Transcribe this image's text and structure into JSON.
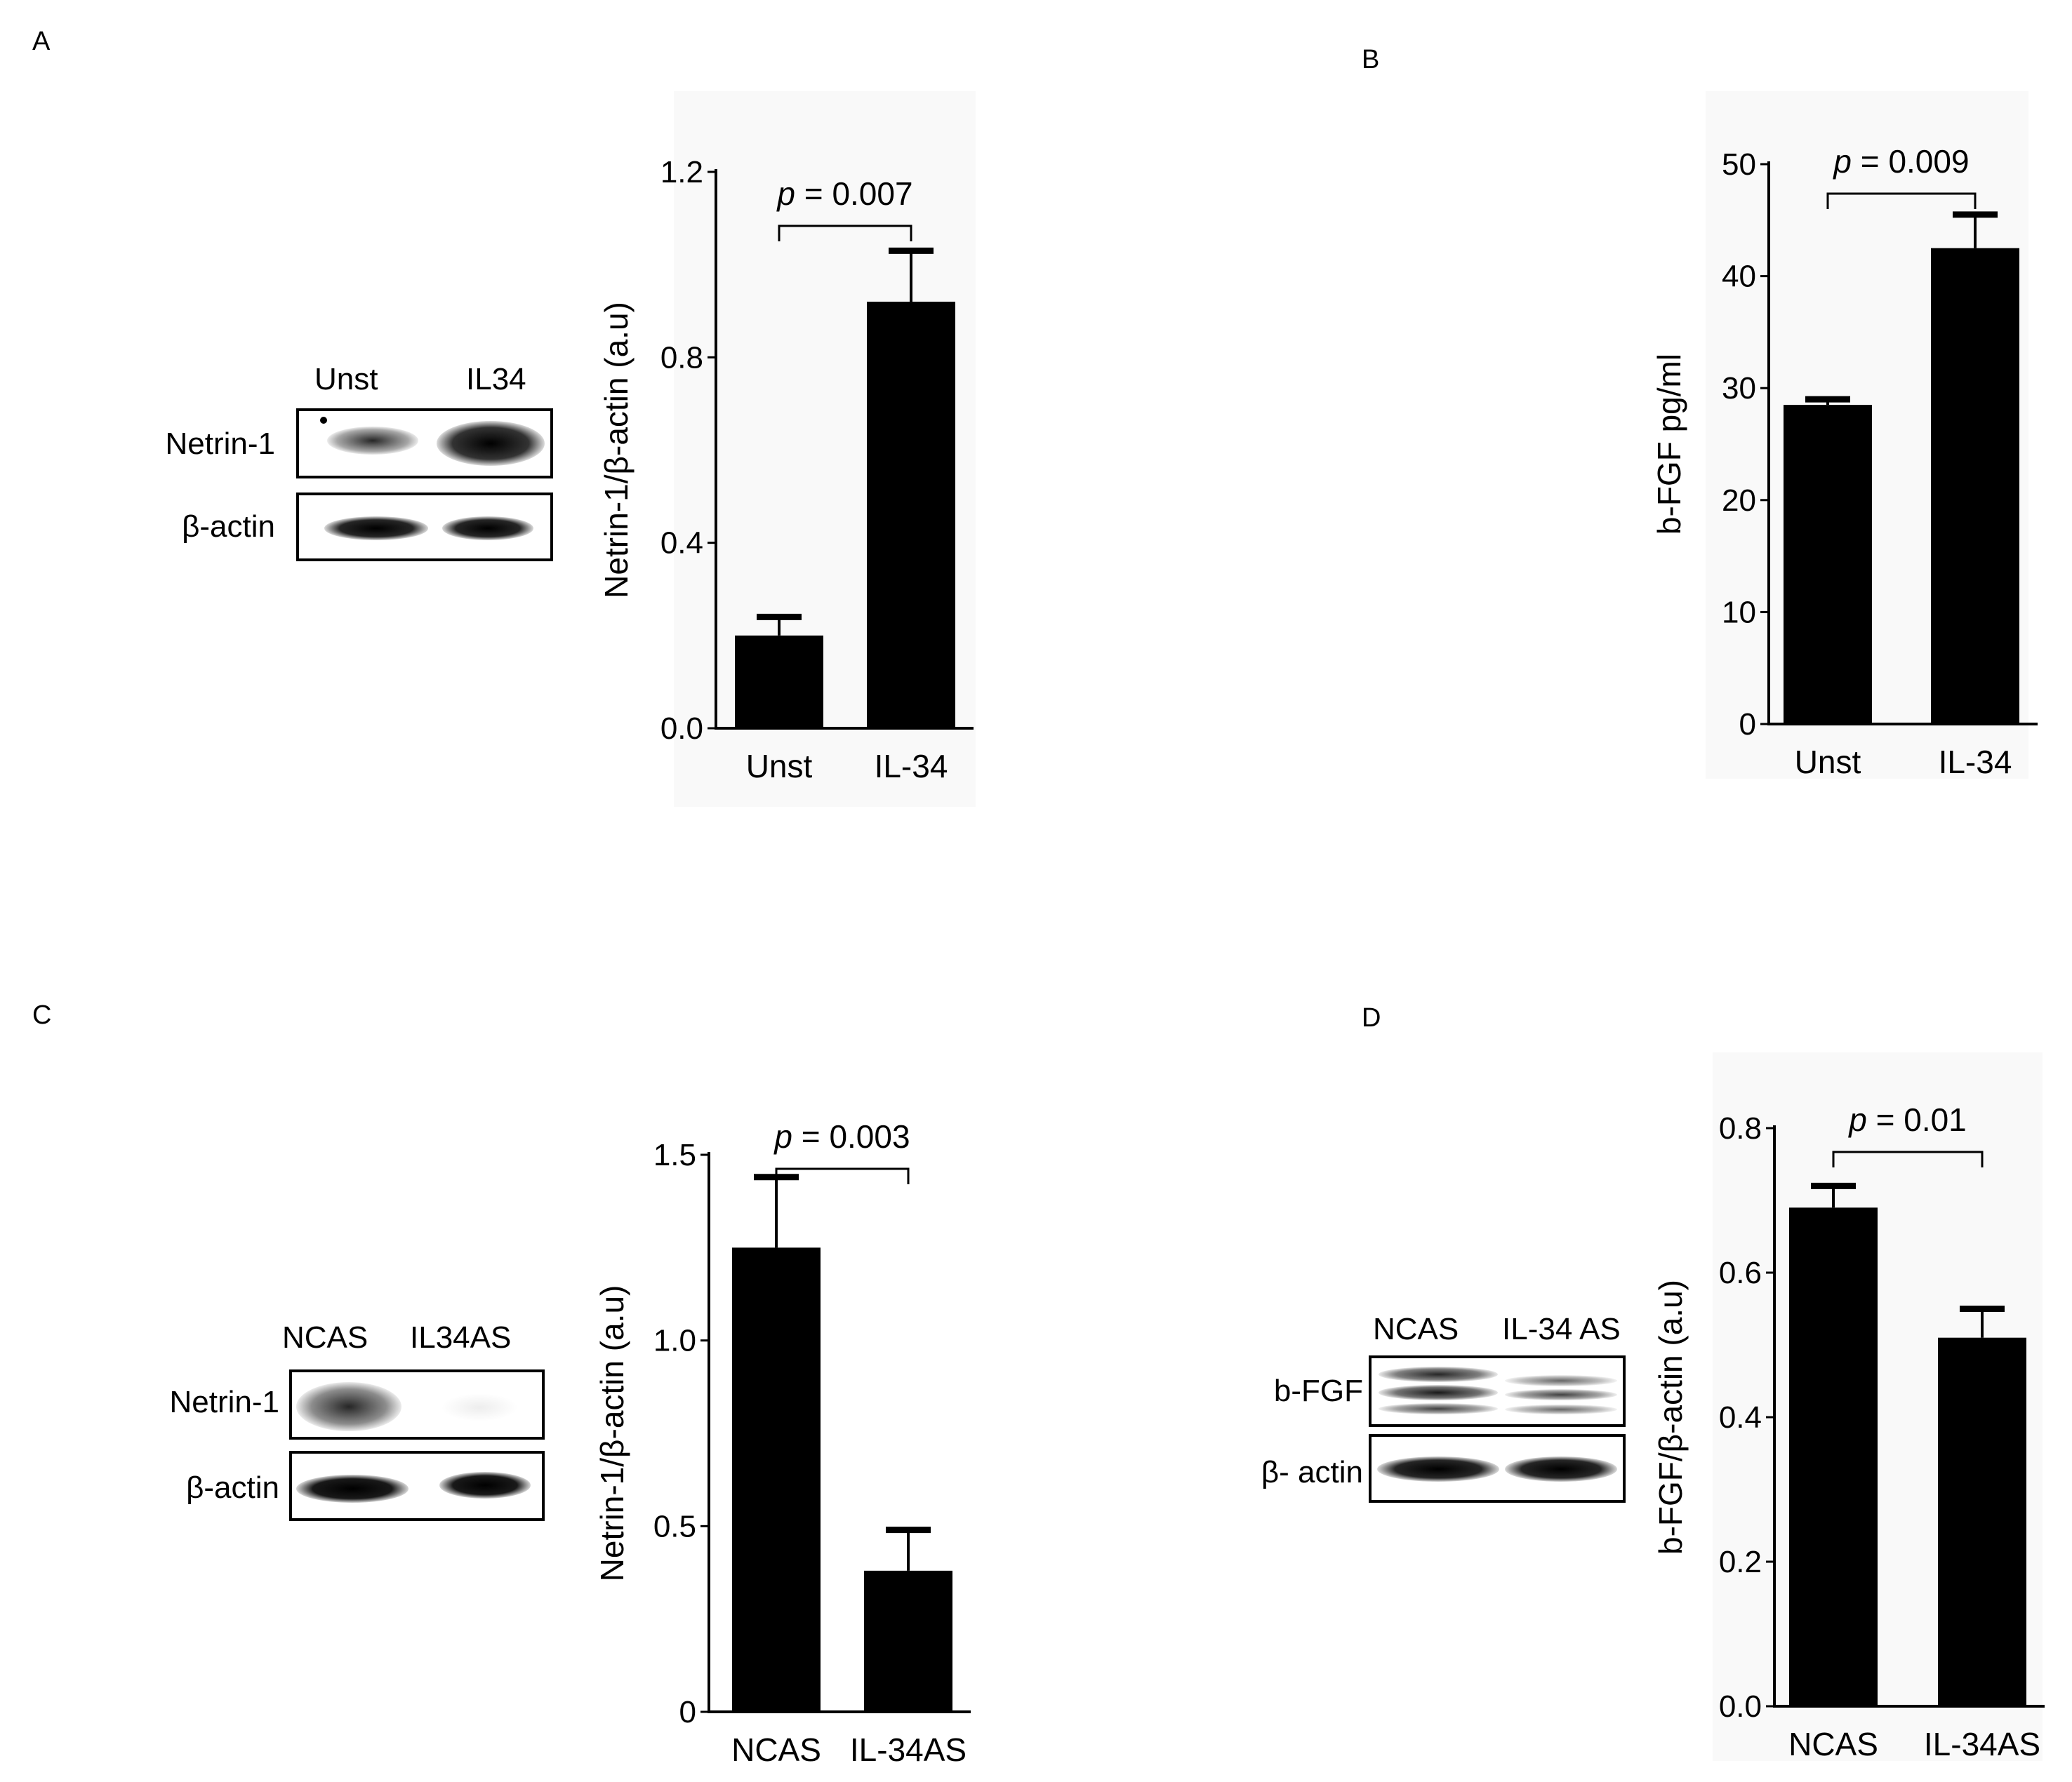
{
  "panel_letters": {
    "a": "A",
    "b": "B",
    "c": "C",
    "d": "D"
  },
  "blots": {
    "a": {
      "lanes": [
        "Unst",
        "IL34"
      ],
      "rows": [
        "Netrin-1",
        "β-actin"
      ]
    },
    "c": {
      "lanes": [
        "NCAS",
        "IL34AS"
      ],
      "rows": [
        "Netrin-1",
        "β-actin"
      ]
    },
    "d": {
      "lanes": [
        "NCAS",
        "IL-34 AS"
      ],
      "rows": [
        "b-FGF",
        "β- actin"
      ]
    }
  },
  "chart_data": [
    {
      "id": "a",
      "type": "bar",
      "categories": [
        "Unst",
        "IL-34"
      ],
      "values": [
        0.2,
        0.92
      ],
      "errors": [
        0.04,
        0.11
      ],
      "ylabel": "Netrin-1/β-actin (a.u)",
      "ylim": [
        0,
        1.2
      ],
      "yticks": [
        "0.0",
        "0.4",
        "0.8",
        "1.2"
      ],
      "ytick_values": [
        0,
        0.4,
        0.8,
        1.2
      ],
      "annotation": {
        "p_symbol": "p",
        "text": " = 0.007"
      },
      "bar_color": "#000000",
      "background": "#f9f9f9"
    },
    {
      "id": "b",
      "type": "bar",
      "categories": [
        "Unst",
        "IL-34"
      ],
      "values": [
        28.5,
        42.5
      ],
      "errors": [
        0.5,
        3.0
      ],
      "ylabel": "b-FGF  pg/ml",
      "ylim": [
        0,
        50
      ],
      "yticks": [
        "0",
        "10",
        "20",
        "30",
        "40",
        "50"
      ],
      "ytick_values": [
        0,
        10,
        20,
        30,
        40,
        50
      ],
      "annotation": {
        "p_symbol": "p",
        "text": " = 0.009"
      },
      "bar_color": "#000000",
      "background": "#f9f9f9"
    },
    {
      "id": "c",
      "type": "bar",
      "categories": [
        "NCAS",
        "IL-34AS"
      ],
      "values": [
        1.25,
        0.38
      ],
      "errors": [
        0.19,
        0.11
      ],
      "ylabel": "Netrin-1/β-actin (a.u)",
      "ylim": [
        0,
        1.5
      ],
      "yticks": [
        "0",
        "0.5",
        "1.0",
        "1.5"
      ],
      "ytick_values": [
        0,
        0.5,
        1.0,
        1.5
      ],
      "annotation": {
        "p_symbol": "p",
        "text": " = 0.003"
      },
      "bar_color": "#000000",
      "background": "#ffffff"
    },
    {
      "id": "d",
      "type": "bar",
      "categories": [
        "NCAS",
        "IL-34AS"
      ],
      "values": [
        0.69,
        0.51
      ],
      "errors": [
        0.03,
        0.04
      ],
      "ylabel": "b-FGF/β-actin (a.u)",
      "ylim": [
        0,
        0.8
      ],
      "yticks": [
        "0.0",
        "0.2",
        "0.4",
        "0.6",
        "0.8"
      ],
      "ytick_values": [
        0,
        0.2,
        0.4,
        0.6,
        0.8
      ],
      "annotation": {
        "p_symbol": "p",
        "text": " = 0.01"
      },
      "bar_color": "#000000",
      "background": "#f9f9f9"
    }
  ]
}
